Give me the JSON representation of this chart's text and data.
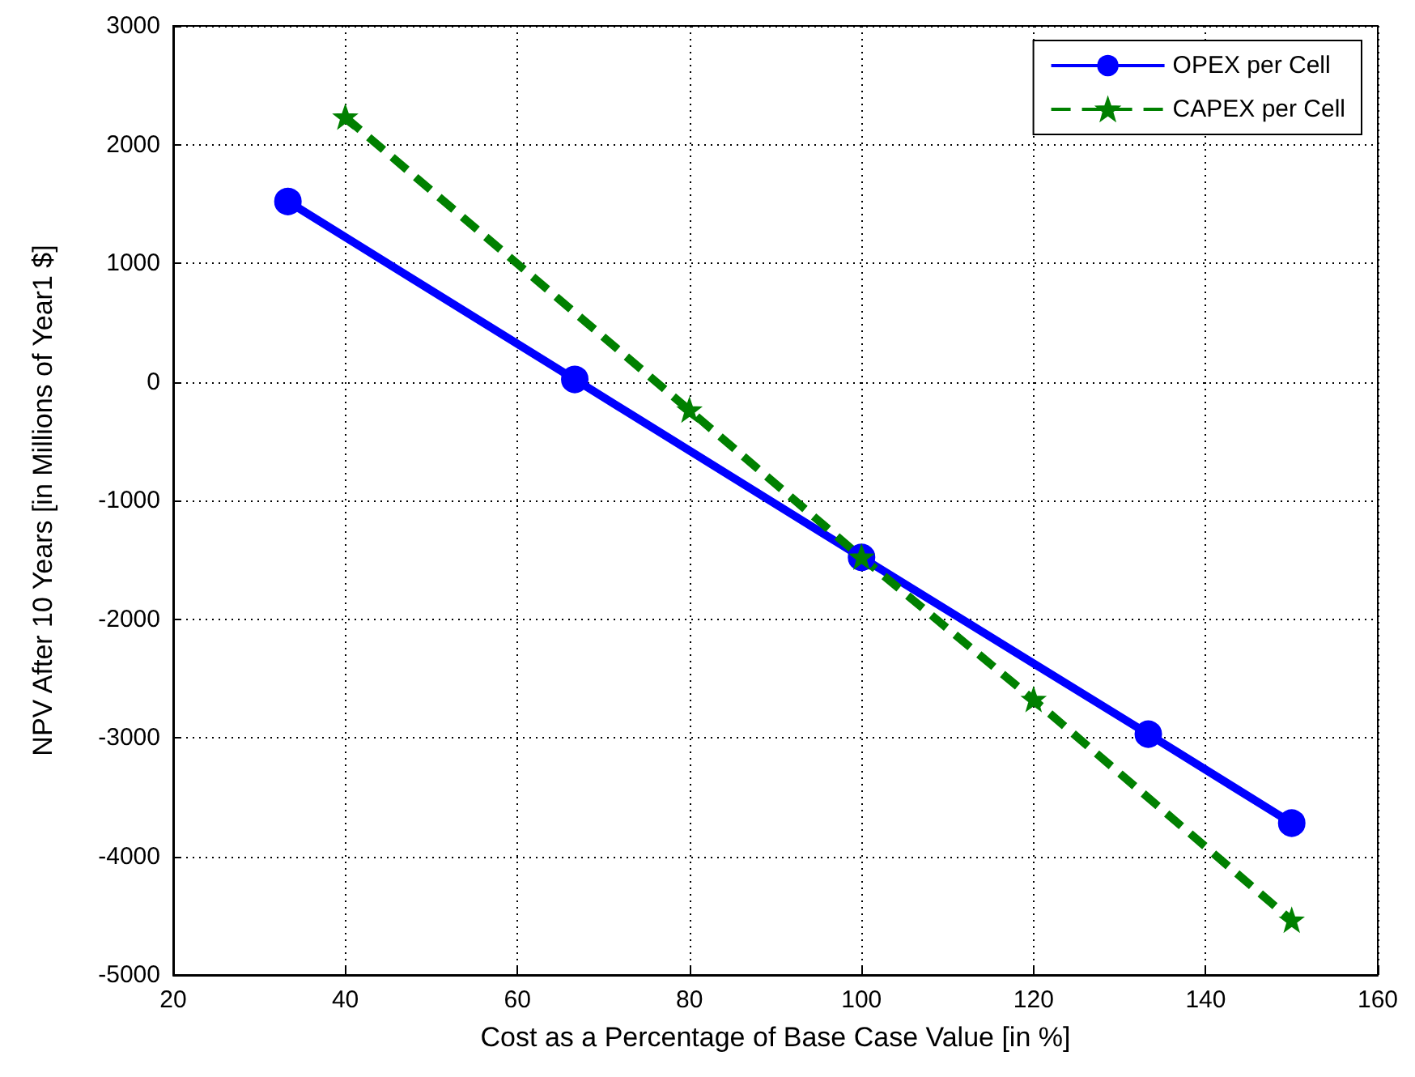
{
  "chart_data": {
    "type": "line",
    "xlabel": "Cost as a Percentage of Base Case Value [in %]",
    "ylabel": "NPV After 10 Years [in Millions of Year1 $]",
    "xlim": [
      20,
      160
    ],
    "xticks": [
      20,
      40,
      60,
      80,
      100,
      120,
      140,
      160
    ],
    "ylim": [
      -5000,
      3000
    ],
    "yticks": [
      -5000,
      -4000,
      -3000,
      -2000,
      -1000,
      0,
      1000,
      2000,
      3000
    ],
    "grid": true,
    "legend": "top right",
    "series": [
      {
        "name": "OPEX per Cell",
        "color": "#0000ff",
        "x": [
          33.33,
          66.67,
          100,
          133.33,
          150
        ],
        "values": [
          1520,
          20,
          -1480,
          -2970,
          -3720
        ],
        "marker": "circle",
        "line_style": "solid"
      },
      {
        "name": "CAPEX per Cell",
        "color": "#008000",
        "x": [
          40,
          80,
          100,
          120,
          150
        ],
        "values": [
          2230,
          -240,
          -1480,
          -2680,
          -4540
        ],
        "marker": "star",
        "line_style": "dashed"
      }
    ]
  }
}
